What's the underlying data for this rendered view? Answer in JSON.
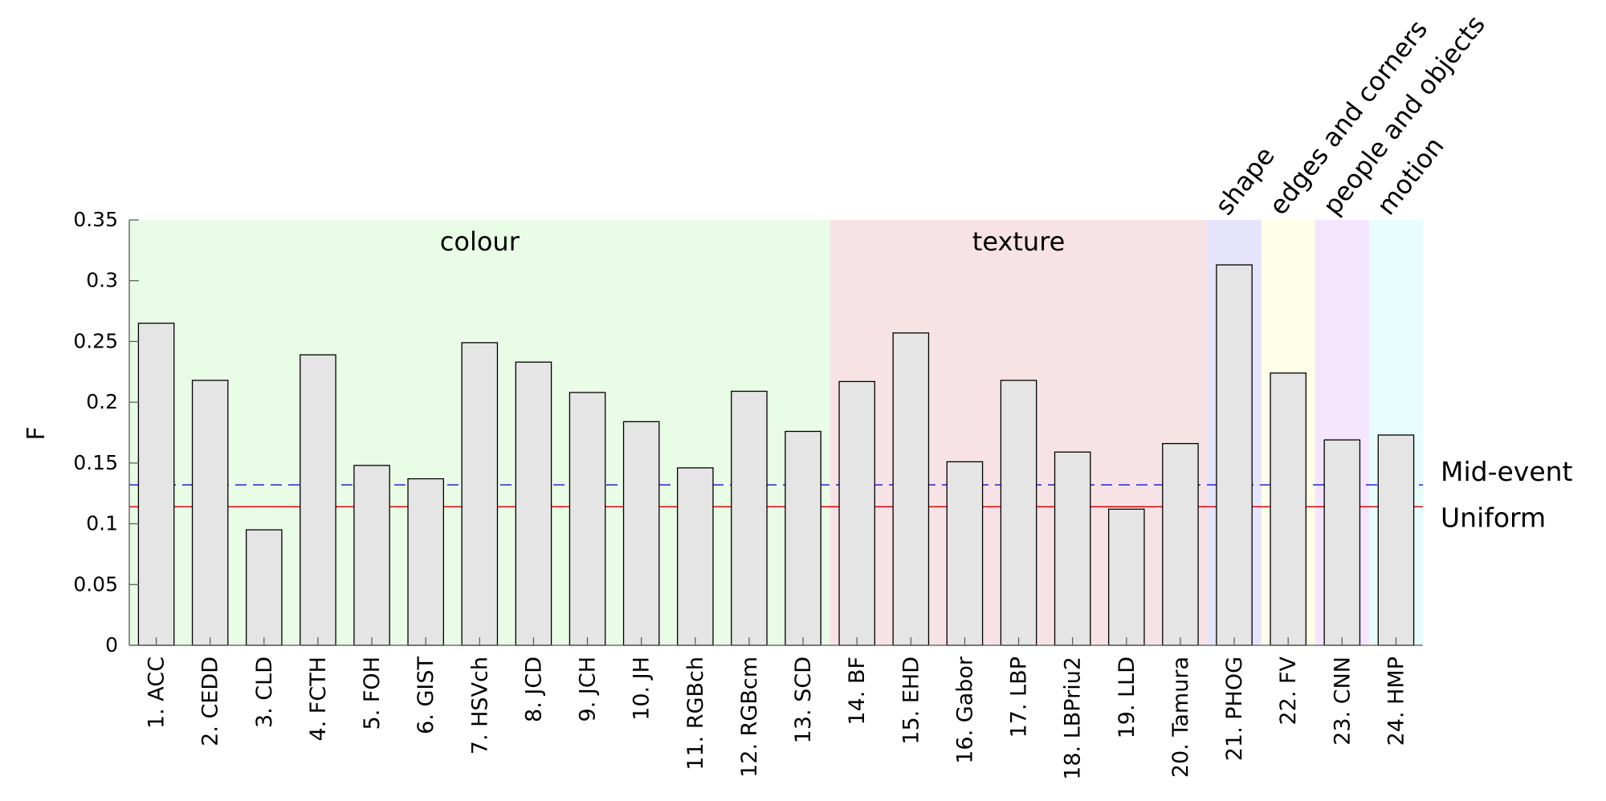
{
  "chart_data": {
    "type": "bar",
    "ylabel": "F",
    "xlabel": "",
    "ylim": [
      0,
      0.35
    ],
    "y_ticks": [
      "0",
      "0.05",
      "0.1",
      "0.15",
      "0.2",
      "0.25",
      "0.3",
      "0.35"
    ],
    "categories": [
      "1. ACC",
      "2. CEDD",
      "3. CLD",
      "4. FCTH",
      "5. FOH",
      "6. GIST",
      "7. HSVch",
      "8. JCD",
      "9. JCH",
      "10. JH",
      "11. RGBch",
      "12. RGBcm",
      "13. SCD",
      "14. BF",
      "15. EHD",
      "16. Gabor",
      "17. LBP",
      "18. LBPriu2",
      "19. LLD",
      "20. Tamura",
      "21. PHOG",
      "22. FV",
      "23. CNN",
      "24. HMP"
    ],
    "values": [
      0.265,
      0.218,
      0.095,
      0.239,
      0.148,
      0.137,
      0.249,
      0.233,
      0.208,
      0.184,
      0.146,
      0.209,
      0.176,
      0.217,
      0.257,
      0.151,
      0.218,
      0.159,
      0.112,
      0.166,
      0.313,
      0.224,
      0.169,
      0.173
    ],
    "bar_fill": "#e5e5e5",
    "bar_stroke": "#000000",
    "groups": [
      {
        "label": "colour",
        "first": 0,
        "last": 12,
        "color": "#e9fde6",
        "label_style": "horizontal"
      },
      {
        "label": "texture",
        "first": 13,
        "last": 19,
        "color": "#f7e3e6",
        "label_style": "horizontal"
      },
      {
        "label": "shape",
        "first": 20,
        "last": 20,
        "color": "#e4e4fd",
        "label_style": "rotated"
      },
      {
        "label": "edges and corners",
        "first": 21,
        "last": 21,
        "color": "#fefee9",
        "label_style": "rotated"
      },
      {
        "label": "people and objects",
        "first": 22,
        "last": 22,
        "color": "#f4e4fd",
        "label_style": "rotated"
      },
      {
        "label": "motion",
        "first": 23,
        "last": 23,
        "color": "#e8fefe",
        "label_style": "rotated"
      }
    ],
    "reference_lines": [
      {
        "label": "Mid-event",
        "value": 0.132,
        "color": "#2222dd",
        "style": "dashed"
      },
      {
        "label": "Uniform",
        "value": 0.114,
        "color": "#dd0000",
        "style": "solid"
      }
    ],
    "grid": false
  }
}
